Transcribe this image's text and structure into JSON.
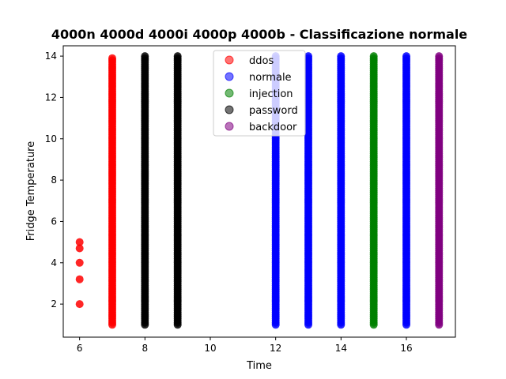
{
  "chart_data": {
    "type": "scatter",
    "title": "4000n 4000d 4000i 4000p 4000b - Classificazione normale",
    "xlabel": "Time",
    "ylabel": "Fridge Temperature",
    "xlim": [
      5.5,
      17.5
    ],
    "ylim": [
      0.4,
      14.5
    ],
    "xticks": [
      6,
      8,
      10,
      12,
      14,
      16
    ],
    "yticks": [
      2,
      4,
      6,
      8,
      10,
      12,
      14
    ],
    "legend_position": "top-center",
    "grid": false,
    "series": [
      {
        "name": "ddos",
        "color": "#ff0000",
        "legend_color": "#ff0000",
        "columns": [
          {
            "x": 6,
            "y_values": [
              2.0,
              3.2,
              4.0,
              4.7,
              5.0
            ]
          },
          {
            "x": 7,
            "y_min": 1.0,
            "y_max": 13.9
          }
        ]
      },
      {
        "name": "normale",
        "color": "#0000ff",
        "legend_color": "#0000ff",
        "columns": [
          {
            "x": 12,
            "y_min": 1.0,
            "y_max": 14.0
          },
          {
            "x": 13,
            "y_min": 1.0,
            "y_max": 14.0
          },
          {
            "x": 14,
            "y_min": 1.0,
            "y_max": 14.0
          },
          {
            "x": 16,
            "y_min": 1.0,
            "y_max": 14.0
          }
        ]
      },
      {
        "name": "injection",
        "color": "#008000",
        "legend_color": "#008000",
        "columns": [
          {
            "x": 15,
            "y_min": 1.0,
            "y_max": 14.0
          }
        ]
      },
      {
        "name": "password",
        "color": "#000000",
        "legend_color": "#000000",
        "columns": [
          {
            "x": 8,
            "y_min": 1.0,
            "y_max": 14.0
          },
          {
            "x": 9,
            "y_min": 1.0,
            "y_max": 14.0
          }
        ]
      },
      {
        "name": "backdoor",
        "color": "#800080",
        "legend_color": "#800080",
        "columns": [
          {
            "x": 17,
            "y_min": 1.0,
            "y_max": 14.0
          }
        ]
      }
    ]
  }
}
